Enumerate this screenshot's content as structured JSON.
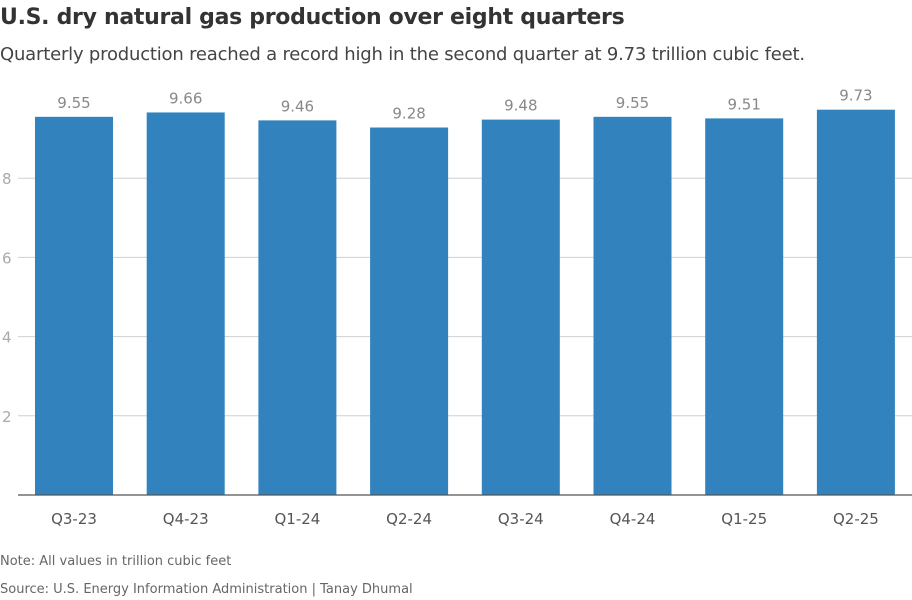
{
  "title": "U.S. dry natural gas production over eight quarters",
  "subtitle": "Quarterly production reached a record high in the second quarter at 9.73 trillion cubic feet.",
  "note": "Note: All values in trillion cubic feet",
  "source": "Source: U.S. Energy Information Administration | Tanay Dhumal",
  "chart_data": {
    "type": "bar",
    "categories": [
      "Q3-23",
      "Q4-23",
      "Q1-24",
      "Q2-24",
      "Q3-24",
      "Q4-24",
      "Q1-25",
      "Q2-25"
    ],
    "values": [
      9.55,
      9.66,
      9.46,
      9.28,
      9.48,
      9.55,
      9.51,
      9.73
    ],
    "data_labels": [
      "9.55",
      "9.66",
      "9.46",
      "9.28",
      "9.48",
      "9.55",
      "9.51",
      "9.73"
    ],
    "yticks": [
      2,
      4,
      6,
      8
    ],
    "ylim": [
      0,
      10
    ],
    "grid": true,
    "bar_color": "#3182bd",
    "title": "U.S. dry natural gas production over eight quarters",
    "xlabel": "",
    "ylabel": ""
  }
}
